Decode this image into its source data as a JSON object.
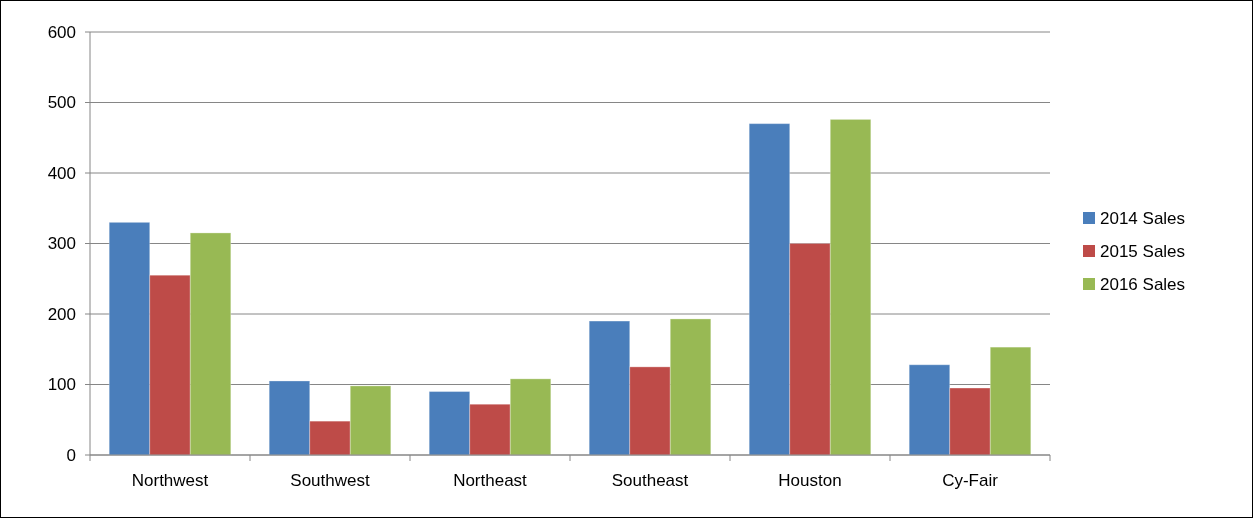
{
  "chart_data": {
    "type": "bar",
    "categories": [
      "Northwest",
      "Southwest",
      "Northeast",
      "Southeast",
      "Houston",
      "Cy-Fair"
    ],
    "series": [
      {
        "name": "2014 Sales",
        "color": "#4a7ebb",
        "values": [
          330,
          105,
          90,
          190,
          470,
          128
        ]
      },
      {
        "name": "2015 Sales",
        "color": "#be4b48",
        "values": [
          255,
          48,
          72,
          125,
          300,
          95
        ]
      },
      {
        "name": "2016 Sales",
        "color": "#98b954",
        "values": [
          315,
          98,
          108,
          193,
          476,
          153
        ]
      }
    ],
    "ylim": [
      0,
      600
    ],
    "yticks": [
      0,
      100,
      200,
      300,
      400,
      500,
      600
    ],
    "grid": "y",
    "legend": "right"
  }
}
